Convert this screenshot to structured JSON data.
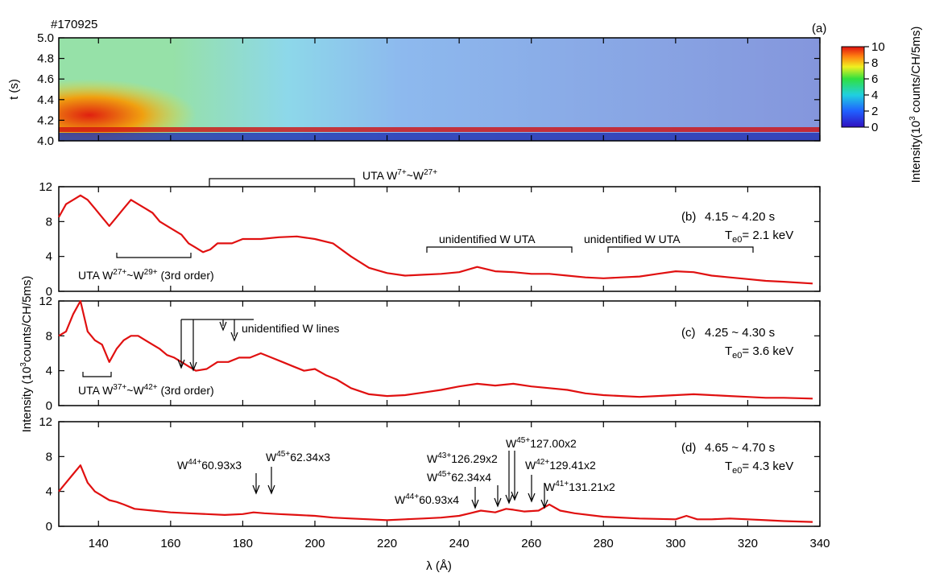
{
  "shot": "#170925",
  "chart_data": [
    {
      "type": "heatmap",
      "panel": "(a)",
      "ylabel": "t (s)",
      "yticks": [
        "4.0",
        "4.2",
        "4.4",
        "4.6",
        "4.8",
        "5.0"
      ],
      "ylim": [
        4.0,
        5.0
      ],
      "xlim": [
        129,
        340
      ],
      "colorbar": {
        "label": "Intensity(10^3 counts/CH/5ms)",
        "ticks": [
          "0",
          "2",
          "4",
          "6",
          "8",
          "10"
        ],
        "range": [
          0,
          10
        ]
      }
    },
    {
      "type": "line",
      "panel": "(b)",
      "time_label": "4.15 ~ 4.20 s",
      "te_label": "= 2.1 keV",
      "xlim": [
        129,
        340
      ],
      "ylim": [
        0,
        12
      ],
      "yticks": [
        "0",
        "4",
        "8",
        "12"
      ],
      "x": [
        129,
        131,
        133,
        135,
        137,
        139,
        141,
        143,
        145,
        147,
        149,
        151,
        153,
        155,
        157,
        159,
        161,
        163,
        165,
        167,
        169,
        171,
        173,
        175,
        177,
        180,
        185,
        190,
        195,
        200,
        205,
        210,
        215,
        220,
        225,
        230,
        235,
        240,
        245,
        250,
        255,
        260,
        265,
        270,
        275,
        280,
        285,
        290,
        295,
        300,
        305,
        310,
        315,
        320,
        325,
        330,
        338
      ],
      "y": [
        8.5,
        10,
        10.5,
        11,
        10.5,
        9.5,
        8.5,
        7.5,
        8.5,
        9.5,
        10.5,
        10,
        9.5,
        9,
        8,
        7.5,
        7,
        6.5,
        5.5,
        5,
        4.5,
        4.8,
        5.5,
        5.5,
        5.5,
        6,
        6,
        6.2,
        6.3,
        6,
        5.5,
        4,
        2.7,
        2.1,
        1.8,
        1.9,
        2,
        2.2,
        2.8,
        2.3,
        2.2,
        2,
        2,
        1.8,
        1.6,
        1.5,
        1.6,
        1.7,
        2,
        2.3,
        2.2,
        1.8,
        1.6,
        1.4,
        1.2,
        1.1,
        0.9
      ]
    },
    {
      "type": "line",
      "panel": "(c)",
      "time_label": "4.25 ~ 4.30 s",
      "te_label": "= 3.6 keV",
      "xlim": [
        129,
        340
      ],
      "ylim": [
        0,
        12
      ],
      "yticks": [
        "0",
        "4",
        "8",
        "12"
      ],
      "x": [
        129,
        131,
        133,
        135,
        137,
        139,
        141,
        143,
        145,
        147,
        149,
        151,
        153,
        155,
        157,
        159,
        161,
        163,
        165,
        167,
        170,
        173,
        176,
        179,
        182,
        185,
        188,
        191,
        194,
        197,
        200,
        203,
        206,
        210,
        215,
        220,
        225,
        230,
        235,
        240,
        245,
        250,
        255,
        260,
        265,
        270,
        275,
        280,
        285,
        290,
        295,
        300,
        305,
        310,
        315,
        320,
        325,
        330,
        338
      ],
      "y": [
        8,
        8.5,
        10.5,
        12,
        8.5,
        7.5,
        7,
        5,
        6.5,
        7.5,
        8,
        8,
        7.5,
        7,
        6.5,
        5.8,
        5.5,
        5,
        4.5,
        4,
        4.2,
        5,
        5,
        5.5,
        5.5,
        6,
        5.5,
        5,
        4.5,
        4,
        4.2,
        3.5,
        3,
        2,
        1.3,
        1.1,
        1.2,
        1.5,
        1.8,
        2.2,
        2.5,
        2.3,
        2.5,
        2.2,
        2,
        1.8,
        1.4,
        1.2,
        1.1,
        1,
        1.1,
        1.2,
        1.3,
        1.2,
        1.1,
        1,
        0.9,
        0.9,
        0.8
      ]
    },
    {
      "type": "line",
      "panel": "(d)",
      "time_label": "4.65 ~ 4.70 s",
      "te_label": "= 4.3 keV",
      "xlim": [
        129,
        340
      ],
      "ylim": [
        0,
        12
      ],
      "yticks": [
        "0",
        "4",
        "8",
        "12"
      ],
      "x": [
        129,
        131,
        133,
        135,
        137,
        139,
        141,
        143,
        145,
        147,
        150,
        155,
        160,
        165,
        170,
        175,
        180,
        183,
        186,
        190,
        195,
        200,
        205,
        210,
        215,
        220,
        225,
        230,
        235,
        240,
        243,
        246,
        250,
        253,
        255,
        258,
        262,
        265,
        268,
        272,
        280,
        290,
        300,
        303,
        306,
        310,
        315,
        320,
        325,
        330,
        338
      ],
      "y": [
        4,
        5,
        6,
        7,
        5,
        4,
        3.5,
        3,
        2.8,
        2.5,
        2,
        1.8,
        1.6,
        1.5,
        1.4,
        1.3,
        1.4,
        1.6,
        1.5,
        1.4,
        1.3,
        1.2,
        1,
        0.9,
        0.8,
        0.7,
        0.8,
        0.9,
        1,
        1.2,
        1.5,
        1.8,
        1.6,
        2,
        1.9,
        1.7,
        1.8,
        2.5,
        1.8,
        1.5,
        1.1,
        0.9,
        0.8,
        1.2,
        0.8,
        0.8,
        0.9,
        0.8,
        0.7,
        0.6,
        0.5
      ]
    }
  ],
  "xaxis": {
    "label": "λ (Å)",
    "ticks": [
      "140",
      "160",
      "180",
      "200",
      "220",
      "240",
      "260",
      "280",
      "300",
      "320",
      "340"
    ]
  },
  "ylabel_lower": "Intensity (10^3counts/CH/5ms)",
  "panel_labels": {
    "b": "(b)",
    "c": "(c)",
    "d": "(d)"
  },
  "annotations": {
    "b": {
      "uta_top": "UTA W7+~W27+",
      "uta_low": "UTA W27+~W29+ (3rd order)",
      "unident1": "unidentified W UTA",
      "unident2": "unidentified W UTA"
    },
    "c": {
      "lines": "unidentified W lines",
      "uta": "UTA W37+~W42+ (3rd order)"
    },
    "d": {
      "l1": "W44+60.93x3",
      "l2": "W45+62.34x3",
      "l3": "W43+126.29x2",
      "l4": "W45+62.34x4",
      "l5": "W44+60.93x4",
      "l6": "W45+127.00x2",
      "l7": "W42+129.41x2",
      "l8": "W41+131.21x2"
    }
  },
  "colors": {
    "trace": "#e01010",
    "axes": "#000000"
  }
}
